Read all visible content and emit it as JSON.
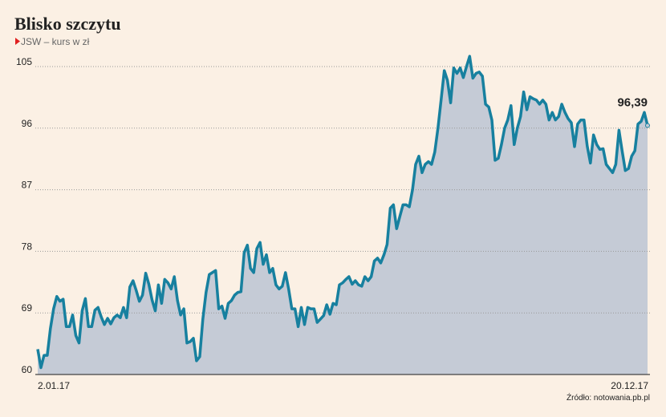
{
  "chart_data": {
    "type": "area",
    "title": "Blisko szczytu",
    "subtitle": "JSW – kurs w zł",
    "source": "Źródło: notowania.pb.pl",
    "last_value_label": "96,39",
    "color": "#17809f",
    "fill": "#c5cbd6",
    "grid": true,
    "ylim": [
      60,
      108
    ],
    "yticks": [
      60,
      69,
      78,
      87,
      96,
      105
    ],
    "categories": [
      "2.01.17",
      null,
      null,
      null,
      null,
      null,
      null,
      null,
      null,
      null,
      null,
      null,
      null,
      null,
      null,
      null,
      null,
      null,
      null,
      null,
      null,
      null,
      null,
      null,
      null,
      null,
      null,
      null,
      null,
      null,
      null,
      null,
      null,
      null,
      null,
      null,
      null,
      null,
      null,
      null,
      null,
      null,
      null,
      null,
      null,
      null,
      null,
      null,
      null,
      null,
      null,
      null,
      null,
      null,
      null,
      null,
      null,
      null,
      null,
      null,
      null,
      null,
      null,
      null,
      null,
      null,
      null,
      null,
      null,
      null,
      null,
      null,
      null,
      null,
      null,
      null,
      null,
      null,
      null,
      null,
      null,
      null,
      null,
      null,
      null,
      null,
      null,
      null,
      null,
      null,
      null,
      null,
      null,
      null,
      null,
      null,
      null,
      null,
      null,
      null,
      null,
      null,
      null,
      null,
      null,
      null,
      null,
      null,
      null,
      null,
      null,
      null,
      null,
      null,
      null,
      null,
      null,
      null,
      null,
      null,
      null,
      null,
      null,
      null,
      null,
      null,
      null,
      null,
      null,
      null,
      null,
      null,
      null,
      null,
      null,
      null,
      null,
      null,
      null,
      null,
      null,
      null,
      null,
      null,
      null,
      null,
      null,
      null,
      null,
      null,
      null,
      null,
      null,
      null,
      null,
      null,
      null,
      null,
      null,
      null,
      null,
      null,
      null,
      null,
      null,
      null,
      null,
      null,
      null,
      null,
      null,
      null,
      null,
      null,
      null,
      null,
      null,
      null,
      null,
      null,
      null,
      null,
      null,
      null,
      null,
      null,
      null,
      null,
      null,
      null,
      null,
      null,
      "20.12.17"
    ],
    "values": [
      63.7,
      61,
      62.8,
      62.8,
      66.7,
      69.6,
      71.4,
      70.7,
      71,
      67,
      67,
      68.7,
      65.7,
      64.6,
      69.3,
      71.1,
      67,
      67,
      69.4,
      69.8,
      68.4,
      67.3,
      68.2,
      67.4,
      68.3,
      68.7,
      68.3,
      69.8,
      68.3,
      72.8,
      73.7,
      72.3,
      70.7,
      71.6,
      74.8,
      73.2,
      70.9,
      69.3,
      73.1,
      70.4,
      73.9,
      73.4,
      72.5,
      74.3,
      70.8,
      68.7,
      69.6,
      64.6,
      64.8,
      65.3,
      62,
      62.6,
      68.1,
      72,
      74.6,
      74.9,
      75.2,
      69.6,
      70,
      68.2,
      70.4,
      70.8,
      71.6,
      72,
      72.1,
      77.8,
      78.9,
      75.5,
      74.9,
      78.4,
      79.3,
      76.1,
      77.5,
      74.9,
      75.5,
      73.1,
      72.5,
      72.9,
      74.9,
      72.5,
      69.6,
      69.6,
      67,
      69.8,
      67.3,
      69.8,
      69.6,
      69.6,
      67.6,
      68.1,
      68.6,
      70.2,
      68.8,
      70.4,
      70.2,
      73.1,
      73.4,
      73.9,
      74.3,
      73.2,
      73.7,
      73.1,
      72.9,
      74.3,
      73.7,
      74.3,
      76.6,
      77,
      76.3,
      77.5,
      79,
      84.3,
      84.8,
      81.3,
      83.1,
      84.8,
      84.8,
      84.5,
      87,
      90.7,
      91.9,
      89.5,
      90.7,
      91.1,
      90.7,
      92.5,
      96,
      100.1,
      104.4,
      103,
      99.7,
      104.8,
      104,
      104.8,
      103.4,
      105,
      106.5,
      103.3,
      104,
      104.2,
      103.6,
      99.5,
      99.1,
      97.2,
      91.3,
      91.6,
      93.6,
      96,
      97.2,
      99.3,
      93.6,
      96,
      97.7,
      101.3,
      98.7,
      100.6,
      100.3,
      100.1,
      99.5,
      100.1,
      99.5,
      97.2,
      98.3,
      97.2,
      97.7,
      99.5,
      98.3,
      97.4,
      96.8,
      93.3,
      96.6,
      97.2,
      97.2,
      93.4,
      90.9,
      95,
      93.6,
      92.9,
      93,
      90.7,
      90.1,
      89.5,
      90.7,
      95.7,
      92.7,
      89.8,
      90.1,
      91.9,
      92.7,
      96.6,
      97,
      98.3,
      96.39
    ]
  }
}
